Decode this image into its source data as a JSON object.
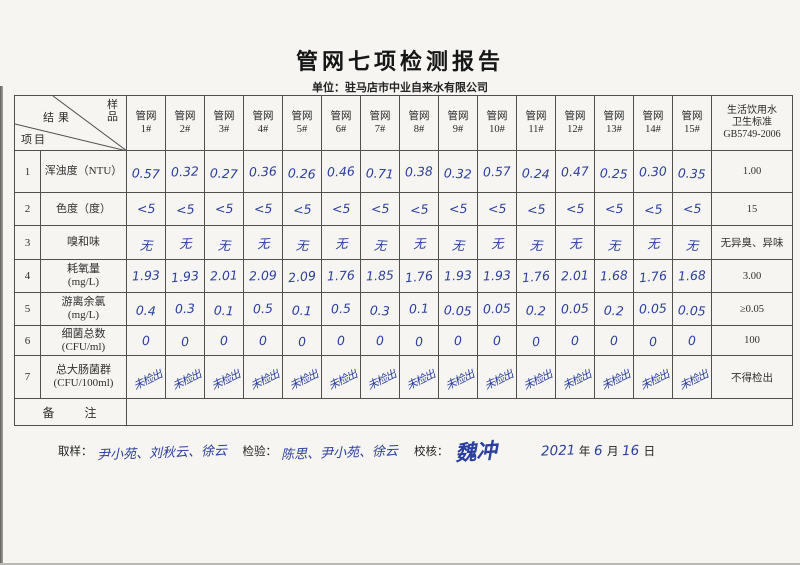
{
  "title": "管网七项检测报告",
  "subtitle": "单位：驻马店市中业自来水有限公司",
  "table": {
    "corner": {
      "result": "结果",
      "sample": "样品",
      "project": "项目"
    },
    "sample_prefix": "管网",
    "sample_columns": [
      "1#",
      "2#",
      "3#",
      "4#",
      "5#",
      "6#",
      "7#",
      "8#",
      "9#",
      "10#",
      "11#",
      "12#",
      "13#",
      "14#",
      "15#"
    ],
    "standard_header": [
      "生活饮用水",
      "卫生标准",
      "GB5749-2006"
    ],
    "rows": [
      {
        "no": "1",
        "name": "浑浊度（NTU）",
        "unit": "",
        "values": [
          "0.57",
          "0.32",
          "0.27",
          "0.36",
          "0.26",
          "0.46",
          "0.71",
          "0.38",
          "0.32",
          "0.57",
          "0.24",
          "0.47",
          "0.25",
          "0.30",
          "0.35"
        ],
        "standard": "1.00"
      },
      {
        "no": "2",
        "name": "色度（度）",
        "unit": "",
        "values": [
          "<5",
          "<5",
          "<5",
          "<5",
          "<5",
          "<5",
          "<5",
          "<5",
          "<5",
          "<5",
          "<5",
          "<5",
          "<5",
          "<5",
          "<5"
        ],
        "standard": "15"
      },
      {
        "no": "3",
        "name": "嗅和味",
        "unit": "",
        "values": [
          "无",
          "无",
          "无",
          "无",
          "无",
          "无",
          "无",
          "无",
          "无",
          "无",
          "无",
          "无",
          "无",
          "无",
          "无"
        ],
        "standard": "无异臭、异味"
      },
      {
        "no": "4",
        "name": "耗氧量",
        "unit": "(mg/L)",
        "values": [
          "1.93",
          "1.93",
          "2.01",
          "2.09",
          "2.09",
          "1.76",
          "1.85",
          "1.76",
          "1.93",
          "1.93",
          "1.76",
          "2.01",
          "1.68",
          "1.76",
          "1.68"
        ],
        "standard": "3.00"
      },
      {
        "no": "5",
        "name": "游离余氯",
        "unit": "(mg/L)",
        "values": [
          "0.4",
          "0.3",
          "0.1",
          "0.5",
          "0.1",
          "0.5",
          "0.3",
          "0.1",
          "0.05",
          "0.05",
          "0.2",
          "0.05",
          "0.2",
          "0.05",
          "0.05"
        ],
        "standard": "≥0.05"
      },
      {
        "no": "6",
        "name": "细菌总数",
        "unit": "(CFU/ml)",
        "values": [
          "0",
          "0",
          "0",
          "0",
          "0",
          "0",
          "0",
          "0",
          "0",
          "0",
          "0",
          "0",
          "0",
          "0",
          "0"
        ],
        "standard": "100"
      },
      {
        "no": "7",
        "name": "总大肠菌群",
        "unit": "(CFU/100ml)",
        "rotated": true,
        "values": [
          "未检出",
          "未检出",
          "未检出",
          "未检出",
          "未检出",
          "未检出",
          "未检出",
          "未检出",
          "未检出",
          "未检出",
          "未检出",
          "未检出",
          "未检出",
          "未检出",
          "未检出"
        ],
        "standard": "不得检出"
      }
    ],
    "remark_label": "备　　注"
  },
  "footer": {
    "sampling_label": "取样：",
    "sampling_names": "尹小苑、刘秋云、徐云",
    "inspection_label": "检验：",
    "inspection_names": "陈思、尹小苑、徐云",
    "check_label": "校核：",
    "check_name": "魏冲",
    "date_year": "2021",
    "year_label": "年",
    "date_month": "6",
    "month_label": "月",
    "date_day": "16",
    "day_label": "日"
  },
  "colors": {
    "ink_blue": "#2b3f9e",
    "print_black": "#2f2f2f",
    "grid_line": "#4f4f4f",
    "paper": "#f6f5f1"
  }
}
